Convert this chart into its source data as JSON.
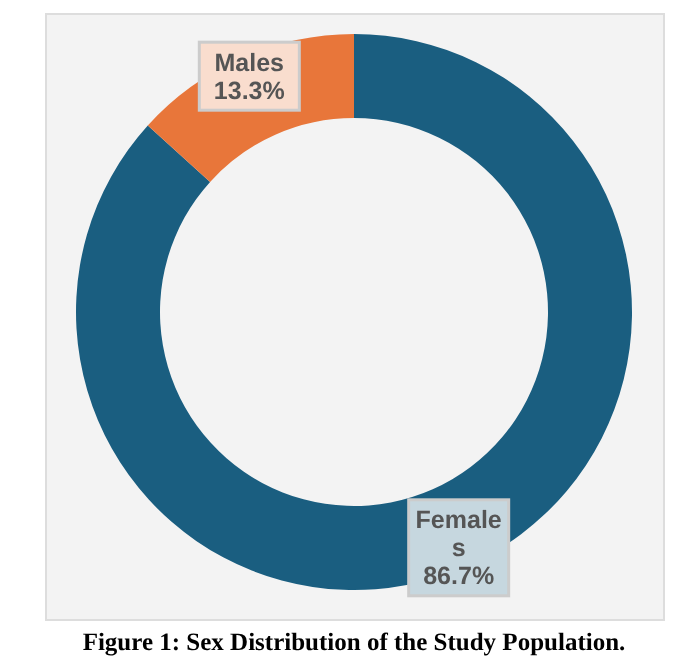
{
  "chart_data": {
    "type": "donut",
    "title": "Figure 1: Sex Distribution of the Study Population.",
    "categories": [
      "Females",
      "Males"
    ],
    "values": [
      86.7,
      13.3
    ],
    "colors": [
      "#1a5e80",
      "#e8763a"
    ],
    "value_labels": [
      "86.7%",
      "13.3%"
    ]
  }
}
